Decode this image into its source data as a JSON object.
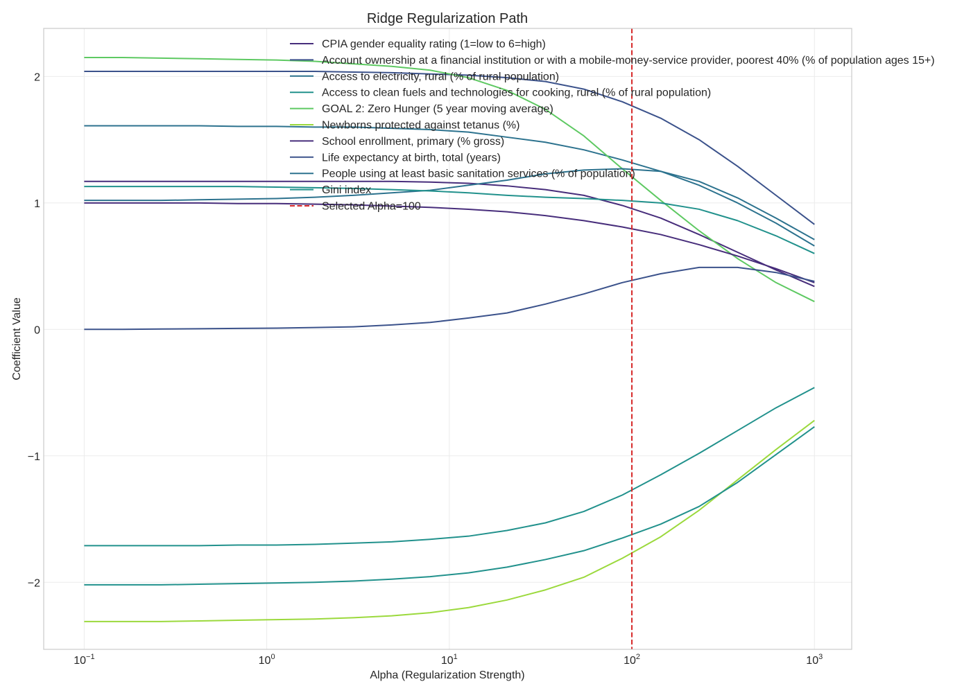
{
  "chart_data": {
    "type": "line",
    "title": "Ridge Regularization Path",
    "xlabel": "Alpha (Regularization Strength)",
    "ylabel": "Coefficient Value",
    "xscale": "log",
    "xlim": [
      0.06,
      1600
    ],
    "ylim": [
      -2.53,
      2.38
    ],
    "x_ticks": [
      {
        "value": 0.1,
        "base": "10",
        "exp": "−1"
      },
      {
        "value": 1,
        "base": "10",
        "exp": "0"
      },
      {
        "value": 10,
        "base": "10",
        "exp": "1"
      },
      {
        "value": 100,
        "base": "10",
        "exp": "2"
      },
      {
        "value": 1000,
        "base": "10",
        "exp": "3"
      }
    ],
    "y_ticks": [
      {
        "value": -2,
        "label": "−2"
      },
      {
        "value": -1,
        "label": "−1"
      },
      {
        "value": 0,
        "label": "0"
      },
      {
        "value": 1,
        "label": "1"
      },
      {
        "value": 2,
        "label": "2"
      }
    ],
    "grid": true,
    "legend_position": "top-center",
    "x": [
      0.1,
      0.1624,
      0.2637,
      0.4281,
      0.6952,
      1.1288,
      1.833,
      2.9764,
      4.8329,
      7.8476,
      12.743,
      20.691,
      33.598,
      54.556,
      88.587,
      143.84,
      233.57,
      379.27,
      615.85,
      1000
    ],
    "series": [
      {
        "name": "CPIA gender equality rating (1=low to 6=high)",
        "color": "#472d7b",
        "values": [
          1.17,
          1.17,
          1.17,
          1.17,
          1.17,
          1.17,
          1.17,
          1.17,
          1.17,
          1.165,
          1.155,
          1.135,
          1.105,
          1.06,
          0.98,
          0.88,
          0.75,
          0.61,
          0.47,
          0.34
        ]
      },
      {
        "name": "Account ownership at a financial institution or with a mobile-money-service provider, poorest 40% (% of population ages 15+)",
        "color": "#3b528b",
        "values": [
          2.04,
          2.04,
          2.04,
          2.04,
          2.04,
          2.04,
          2.04,
          2.035,
          2.03,
          2.02,
          2.01,
          1.99,
          1.96,
          1.9,
          1.8,
          1.67,
          1.5,
          1.29,
          1.06,
          0.83
        ]
      },
      {
        "name": "Access to electricity, rural (% of rural population)",
        "color": "#2c728e",
        "values": [
          1.61,
          1.61,
          1.61,
          1.61,
          1.605,
          1.605,
          1.6,
          1.6,
          1.59,
          1.58,
          1.56,
          1.52,
          1.48,
          1.42,
          1.34,
          1.25,
          1.14,
          1.0,
          0.84,
          0.66
        ]
      },
      {
        "name": "Access to clean fuels and technologies for cooking, rural (% of rural population)",
        "color": "#21918c",
        "values": [
          -1.71,
          -1.71,
          -1.71,
          -1.71,
          -1.705,
          -1.705,
          -1.7,
          -1.69,
          -1.68,
          -1.66,
          -1.635,
          -1.59,
          -1.53,
          -1.44,
          -1.31,
          -1.15,
          -0.98,
          -0.8,
          -0.62,
          -0.46
        ]
      },
      {
        "name": "GOAL 2: Zero Hunger (5 year moving average)",
        "color": "#5ec962",
        "values": [
          2.15,
          2.15,
          2.145,
          2.14,
          2.135,
          2.13,
          2.12,
          2.1,
          2.08,
          2.05,
          1.99,
          1.89,
          1.74,
          1.53,
          1.27,
          1.02,
          0.78,
          0.56,
          0.37,
          0.22
        ]
      },
      {
        "name": "Newborns protected against tetanus (%)",
        "color": "#9bd93c",
        "values": [
          -2.31,
          -2.31,
          -2.31,
          -2.305,
          -2.3,
          -2.295,
          -2.29,
          -2.28,
          -2.265,
          -2.24,
          -2.2,
          -2.14,
          -2.06,
          -1.96,
          -1.81,
          -1.64,
          -1.43,
          -1.19,
          -0.95,
          -0.72
        ]
      },
      {
        "name": "School enrollment, primary (% gross)",
        "color": "#472d7b",
        "values": [
          1.0,
          1.0,
          1.0,
          1.0,
          0.995,
          0.995,
          0.99,
          0.985,
          0.975,
          0.965,
          0.95,
          0.93,
          0.9,
          0.86,
          0.81,
          0.75,
          0.67,
          0.58,
          0.48,
          0.37
        ]
      },
      {
        "name": "Life expectancy at birth, total (years)",
        "color": "#3b528b",
        "values": [
          0.0,
          0.0,
          0.003,
          0.005,
          0.008,
          0.01,
          0.015,
          0.02,
          0.035,
          0.055,
          0.09,
          0.13,
          0.2,
          0.28,
          0.37,
          0.44,
          0.49,
          0.49,
          0.45,
          0.38
        ]
      },
      {
        "name": "People using at least basic sanitation services (% of population)",
        "color": "#2c728e",
        "values": [
          1.02,
          1.02,
          1.02,
          1.025,
          1.03,
          1.035,
          1.045,
          1.06,
          1.08,
          1.1,
          1.14,
          1.18,
          1.23,
          1.26,
          1.27,
          1.25,
          1.17,
          1.04,
          0.88,
          0.71
        ]
      },
      {
        "name": "Gini index",
        "color": "#21918c",
        "values": [
          -2.02,
          -2.02,
          -2.02,
          -2.015,
          -2.01,
          -2.005,
          -2.0,
          -1.99,
          -1.975,
          -1.955,
          -1.925,
          -1.88,
          -1.82,
          -1.75,
          -1.65,
          -1.54,
          -1.4,
          -1.21,
          -0.99,
          -0.77
        ]
      },
      {
        "name": "Gini index",
        "color": "#21918c",
        "values": [
          1.13,
          1.13,
          1.13,
          1.13,
          1.13,
          1.125,
          1.12,
          1.115,
          1.105,
          1.095,
          1.08,
          1.06,
          1.045,
          1.035,
          1.02,
          1.0,
          0.95,
          0.86,
          0.74,
          0.6
        ]
      }
    ],
    "legend_entries": [
      {
        "name": "CPIA gender equality rating (1=low to 6=high)",
        "color": "#472d7b",
        "dashed": false
      },
      {
        "name": "Account ownership at a financial institution or with a mobile-money-service provider, poorest 40% (% of population ages 15+)",
        "color": "#3b528b",
        "dashed": false
      },
      {
        "name": "Access to electricity, rural (% of rural population)",
        "color": "#2c728e",
        "dashed": false
      },
      {
        "name": "Access to clean fuels and technologies for cooking, rural (% of rural population)",
        "color": "#21918c",
        "dashed": false
      },
      {
        "name": "GOAL 2: Zero Hunger (5 year moving average)",
        "color": "#5ec962",
        "dashed": false
      },
      {
        "name": "Newborns protected against tetanus (%)",
        "color": "#9bd93c",
        "dashed": false
      },
      {
        "name": "School enrollment, primary (% gross)",
        "color": "#472d7b",
        "dashed": false
      },
      {
        "name": "Life expectancy at birth, total (years)",
        "color": "#3b528b",
        "dashed": false
      },
      {
        "name": "People using at least basic sanitation services (% of population)",
        "color": "#2c728e",
        "dashed": false
      },
      {
        "name": "Gini index",
        "color": "#21918c",
        "dashed": false
      },
      {
        "name": "Selected Alpha=100",
        "color": "#d62728",
        "dashed": true
      }
    ],
    "reference_line": {
      "x": 100,
      "label": "Selected Alpha=100",
      "color": "#d62728",
      "style": "dashed"
    }
  }
}
